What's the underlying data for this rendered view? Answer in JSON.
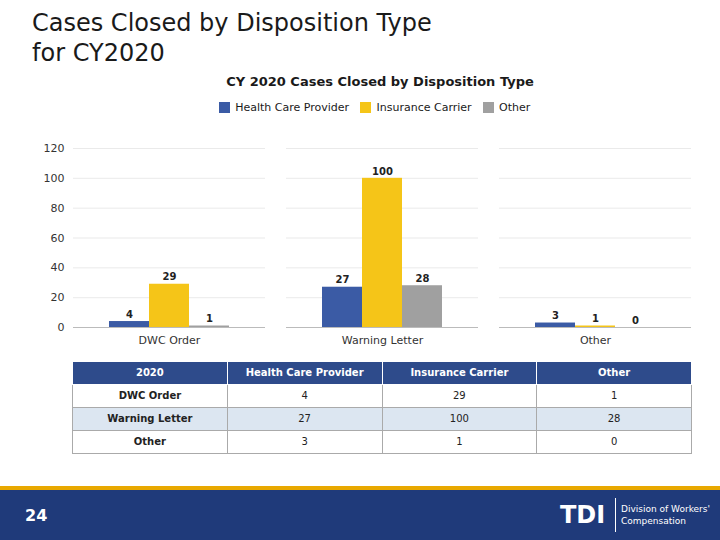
{
  "chart_data": {
    "type": "bar",
    "title": "CY 2020 Cases Closed by Disposition Type",
    "categories": [
      "DWC Order",
      "Warning Letter",
      "Other"
    ],
    "series": [
      {
        "name": "Health Care Provider",
        "color": "#3B5BA5",
        "values": [
          4,
          27,
          3
        ]
      },
      {
        "name": "Insurance Carrier",
        "color": "#F5C518",
        "values": [
          29,
          100,
          1
        ]
      },
      {
        "name": "Other",
        "color": "#A0A0A0",
        "values": [
          1,
          28,
          0
        ]
      }
    ],
    "ylim": [
      0,
      120
    ],
    "yticks": [
      0,
      20,
      40,
      60,
      80,
      100,
      120
    ],
    "grid": true,
    "legend": "top",
    "data_labels": true
  },
  "heading": [
    "Cases Closed by Disposition Type",
    "for CY2020"
  ],
  "table": {
    "header": [
      "2020",
      "Health Care Provider",
      "Insurance Carrier",
      "Other"
    ],
    "rows": [
      [
        "DWC Order",
        "4",
        "29",
        "1"
      ],
      [
        "Warning Letter",
        "27",
        "100",
        "28"
      ],
      [
        "Other",
        "3",
        "1",
        "0"
      ]
    ]
  },
  "footer": {
    "page": "24",
    "logo": "TDI",
    "text": "Division of Workers'\nCompensation"
  }
}
